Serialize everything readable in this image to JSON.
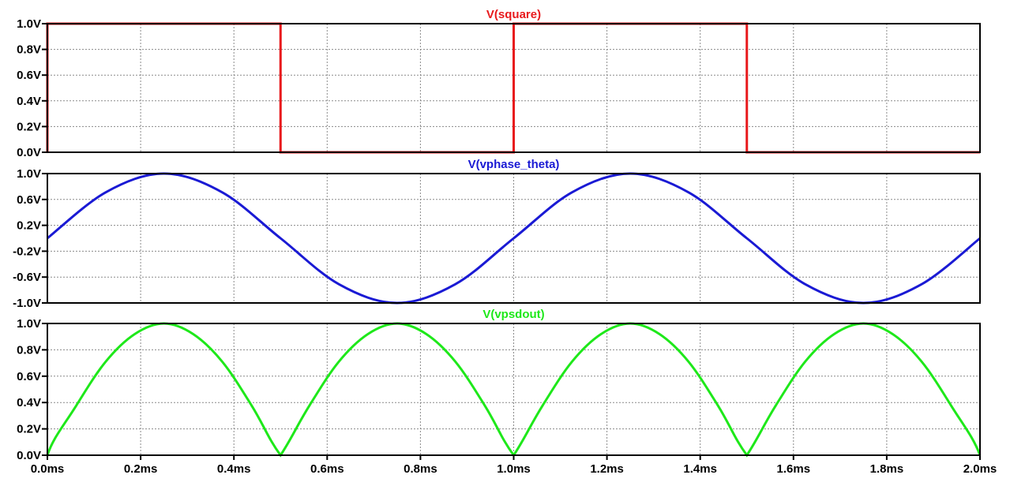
{
  "chart_data": [
    {
      "type": "line",
      "title": "V(square)",
      "color": "#e8191c",
      "x_range": [
        "0.0ms",
        "2.0ms"
      ],
      "xlim": [
        0,
        2.0
      ],
      "ylim": [
        0,
        1.0
      ],
      "y_ticks": [
        0,
        0.2,
        0.4,
        0.6,
        0.8,
        1.0
      ],
      "y_tick_labels": [
        "0.0V",
        "0.2V",
        "0.4V",
        "0.6V",
        "0.8V",
        "1.0V"
      ],
      "grid": true,
      "series": [
        {
          "x": [
            0,
            0,
            0.5,
            0.5,
            1.0,
            1.0,
            1.5,
            1.5,
            2.0
          ],
          "y": [
            0,
            1,
            1,
            0,
            0,
            1,
            1,
            0,
            0
          ]
        }
      ]
    },
    {
      "type": "line",
      "title": "V(vphase_theta)",
      "color": "#1a1ad4",
      "xlim": [
        0,
        2.0
      ],
      "ylim": [
        -1.0,
        1.0
      ],
      "y_ticks": [
        -1.0,
        -0.6,
        -0.2,
        0.2,
        0.6,
        1.0
      ],
      "y_tick_labels": [
        "-1.0V",
        "-0.6V",
        "-0.2V",
        "0.2V",
        "0.6V",
        "1.0V"
      ],
      "grid": true,
      "series": [
        {
          "x": [
            0,
            0.125,
            0.25,
            0.375,
            0.5,
            0.625,
            0.75,
            0.875,
            1.0,
            1.125,
            1.25,
            1.375,
            1.5,
            1.625,
            1.75,
            1.875,
            2.0
          ],
          "y": [
            0,
            0.71,
            1.0,
            0.71,
            0,
            -0.71,
            -1.0,
            -0.71,
            0,
            0.71,
            1.0,
            0.71,
            0,
            -0.71,
            -1.0,
            -0.71,
            0
          ]
        }
      ]
    },
    {
      "type": "line",
      "title": "V(vpsdout)",
      "color": "#1ee81a",
      "xlim": [
        0,
        2.0
      ],
      "ylim": [
        0,
        1.0
      ],
      "y_ticks": [
        0,
        0.2,
        0.4,
        0.6,
        0.8,
        1.0
      ],
      "y_tick_labels": [
        "0.0V",
        "0.2V",
        "0.4V",
        "0.6V",
        "0.8V",
        "1.0V"
      ],
      "grid": true,
      "x_ticks": [
        0,
        0.2,
        0.4,
        0.6,
        0.8,
        1.0,
        1.2,
        1.4,
        1.6,
        1.8,
        2.0
      ],
      "x_tick_labels": [
        "0.0ms",
        "0.2ms",
        "0.4ms",
        "0.6ms",
        "0.8ms",
        "1.0ms",
        "1.2ms",
        "1.4ms",
        "1.6ms",
        "1.8ms",
        "2.0ms"
      ],
      "series": [
        {
          "x": [
            0,
            0.0625,
            0.125,
            0.1875,
            0.25,
            0.3125,
            0.375,
            0.4375,
            0.5,
            0.5625,
            0.625,
            0.6875,
            0.75,
            0.8125,
            0.875,
            0.9375,
            1.0,
            1.0625,
            1.125,
            1.1875,
            1.25,
            1.3125,
            1.375,
            1.4375,
            1.5,
            1.5625,
            1.625,
            1.6875,
            1.75,
            1.8125,
            1.875,
            1.9375,
            2.0
          ],
          "y": [
            0,
            0.38,
            0.71,
            0.92,
            1.0,
            0.92,
            0.71,
            0.38,
            0,
            0.38,
            0.71,
            0.92,
            1.0,
            0.92,
            0.71,
            0.38,
            0,
            0.38,
            0.71,
            0.92,
            1.0,
            0.92,
            0.71,
            0.38,
            0,
            0.38,
            0.71,
            0.92,
            1.0,
            0.92,
            0.71,
            0.38,
            0
          ]
        }
      ]
    }
  ]
}
